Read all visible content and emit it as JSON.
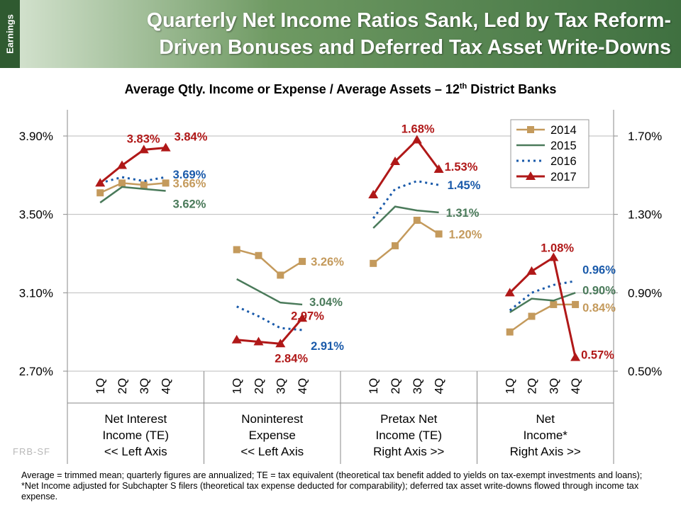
{
  "header": {
    "section_tag": "Earnings",
    "title_line1": "Quarterly Net Income Ratios Sank, Led by Tax Reform-",
    "title_line2": "Driven Bonuses and Deferred Tax Asset Write-Downs"
  },
  "subtitle": {
    "main": "Average Qtly. Income or Expense / Average Assets – 12",
    "sup": "th",
    "tail": " District Banks"
  },
  "watermark": "FRB-SF",
  "footnote": "Average = trimmed mean; quarterly figures are annualized; TE = tax equivalent (theoretical tax benefit added to yields on tax-exempt investments and loans); *Net Income adjusted for Subchapter S filers (theoretical tax expense deducted for comparability); deferred tax asset write-downs flowed through income tax expense.",
  "colors": {
    "2014": "#c49a5c",
    "2015": "#4a7a5a",
    "2016": "#1a5aaa",
    "2017": "#b01818"
  },
  "chart_data": {
    "type": "line",
    "left_axis": {
      "ticks": [
        "3.90%",
        "3.50%",
        "3.10%",
        "2.70%"
      ],
      "ylim": [
        2.7,
        3.9
      ]
    },
    "right_axis": {
      "ticks": [
        "1.70%",
        "1.30%",
        "0.90%",
        "0.50%"
      ],
      "ylim": [
        0.5,
        1.7
      ]
    },
    "quarters": [
      "1Q",
      "2Q",
      "3Q",
      "4Q"
    ],
    "legend": [
      "2014",
      "2015",
      "2016",
      "2017"
    ],
    "legend_position": "top-right",
    "groups": [
      {
        "label": [
          "Net Interest",
          "Income (TE)",
          "<< Left Axis"
        ],
        "axis": "left",
        "series": {
          "2014": [
            3.61,
            3.66,
            3.65,
            3.66
          ],
          "2015": [
            3.56,
            3.64,
            3.63,
            3.62
          ],
          "2016": [
            3.66,
            3.69,
            3.67,
            3.69
          ],
          "2017": [
            3.66,
            3.75,
            3.83,
            3.84
          ]
        },
        "labels": [
          [
            "2017",
            "3.83%",
            2
          ],
          [
            "2017",
            "3.84%",
            3
          ],
          [
            "2016",
            "3.69%",
            3
          ],
          [
            "2014",
            "3.66%",
            3
          ],
          [
            "2015",
            "3.62%",
            3
          ]
        ]
      },
      {
        "label": [
          "Noninterest",
          "Expense",
          "<< Left Axis"
        ],
        "axis": "left",
        "series": {
          "2014": [
            3.32,
            3.29,
            3.19,
            3.26
          ],
          "2015": [
            3.17,
            3.11,
            3.05,
            3.04
          ],
          "2016": [
            3.03,
            2.98,
            2.92,
            2.91
          ],
          "2017": [
            2.86,
            2.85,
            2.84,
            2.97
          ]
        },
        "labels": [
          [
            "2014",
            "3.26%",
            3
          ],
          [
            "2015",
            "3.04%",
            3
          ],
          [
            "2017",
            "2.97%",
            3
          ],
          [
            "2016",
            "2.91%",
            3
          ],
          [
            "2017",
            "2.84%",
            2
          ]
        ]
      },
      {
        "label": [
          "Pretax Net",
          "Income (TE)",
          "Right Axis >>"
        ],
        "axis": "right",
        "series": {
          "2014": [
            1.05,
            1.14,
            1.27,
            1.2
          ],
          "2015": [
            1.23,
            1.34,
            1.32,
            1.31
          ],
          "2016": [
            1.28,
            1.43,
            1.47,
            1.45
          ],
          "2017": [
            1.4,
            1.57,
            1.68,
            1.53
          ]
        },
        "labels": [
          [
            "2017",
            "1.68%",
            2
          ],
          [
            "2017",
            "1.53%",
            3
          ],
          [
            "2016",
            "1.45%",
            3
          ],
          [
            "2015",
            "1.31%",
            3
          ],
          [
            "2014",
            "1.20%",
            3
          ]
        ]
      },
      {
        "label": [
          "Net",
          "Income*",
          "Right Axis >>"
        ],
        "axis": "right",
        "series": {
          "2014": [
            0.7,
            0.78,
            0.84,
            0.84
          ],
          "2015": [
            0.8,
            0.87,
            0.86,
            0.9
          ],
          "2016": [
            0.81,
            0.9,
            0.94,
            0.96
          ],
          "2017": [
            0.9,
            1.01,
            1.08,
            0.57
          ]
        },
        "labels": [
          [
            "2017",
            "1.08%",
            2
          ],
          [
            "2016",
            "0.96%",
            3
          ],
          [
            "2015",
            "0.90%",
            3
          ],
          [
            "2014",
            "0.84%",
            3
          ],
          [
            "2017",
            "0.57%",
            3
          ]
        ]
      }
    ]
  }
}
